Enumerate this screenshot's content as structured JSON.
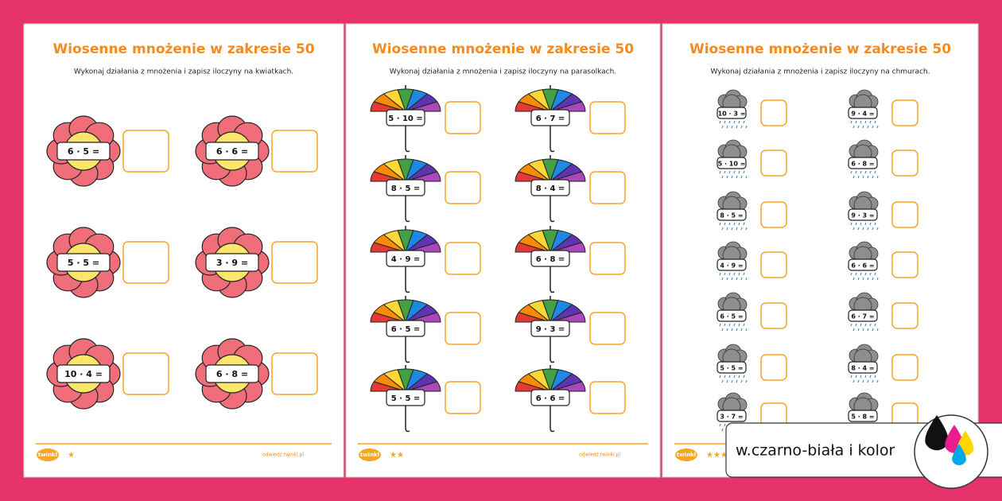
{
  "pages": [
    {
      "title": "Wiosenne mnożenie w zakresie 50",
      "instruction": "Wykonaj działania z mnożenia i zapisz iloczyny na kwiatkach.",
      "exercises": [
        "6 · 5 =",
        "6 · 6 =",
        "5 · 5 =",
        "3 · 9 =",
        "10 · 4 =",
        "6 · 8 ="
      ],
      "logo": "twinkl",
      "stars": "★",
      "url": "odwiedź twinkl.pl"
    },
    {
      "title": "Wiosenne mnożenie w zakresie 50",
      "instruction": "Wykonaj działania z mnożenia i zapisz iloczyny na parasolkach.",
      "exercises": [
        "5 · 10 =",
        "6 · 7 =",
        "8 · 5 =",
        "8 · 4 =",
        "4 · 9 =",
        "6 · 8 =",
        "6 · 5 =",
        "9 · 3 =",
        "5 · 5 =",
        "6 · 6 ="
      ],
      "logo": "twinkl",
      "stars": "★★",
      "url": "odwiedź twinkl.pl"
    },
    {
      "title": "Wiosenne mnożenie w zakresie 50",
      "instruction": "Wykonaj działania z mnożenia i zapisz iloczyny na chmurach.",
      "exercises": [
        "10 · 3 =",
        "9 · 4 =",
        "5 · 10 =",
        "6 · 8 =",
        "8 · 5 =",
        "9 · 3 =",
        "4 · 9 =",
        "6 · 6 =",
        "6 · 5 =",
        "6 · 7 =",
        "5 · 5 =",
        "8 · 4 =",
        "3 · 7 =",
        "5 · 8 ="
      ],
      "logo": "twinkl",
      "stars": "★★★"
    }
  ],
  "badge": "w.czarno-biała i kolor"
}
